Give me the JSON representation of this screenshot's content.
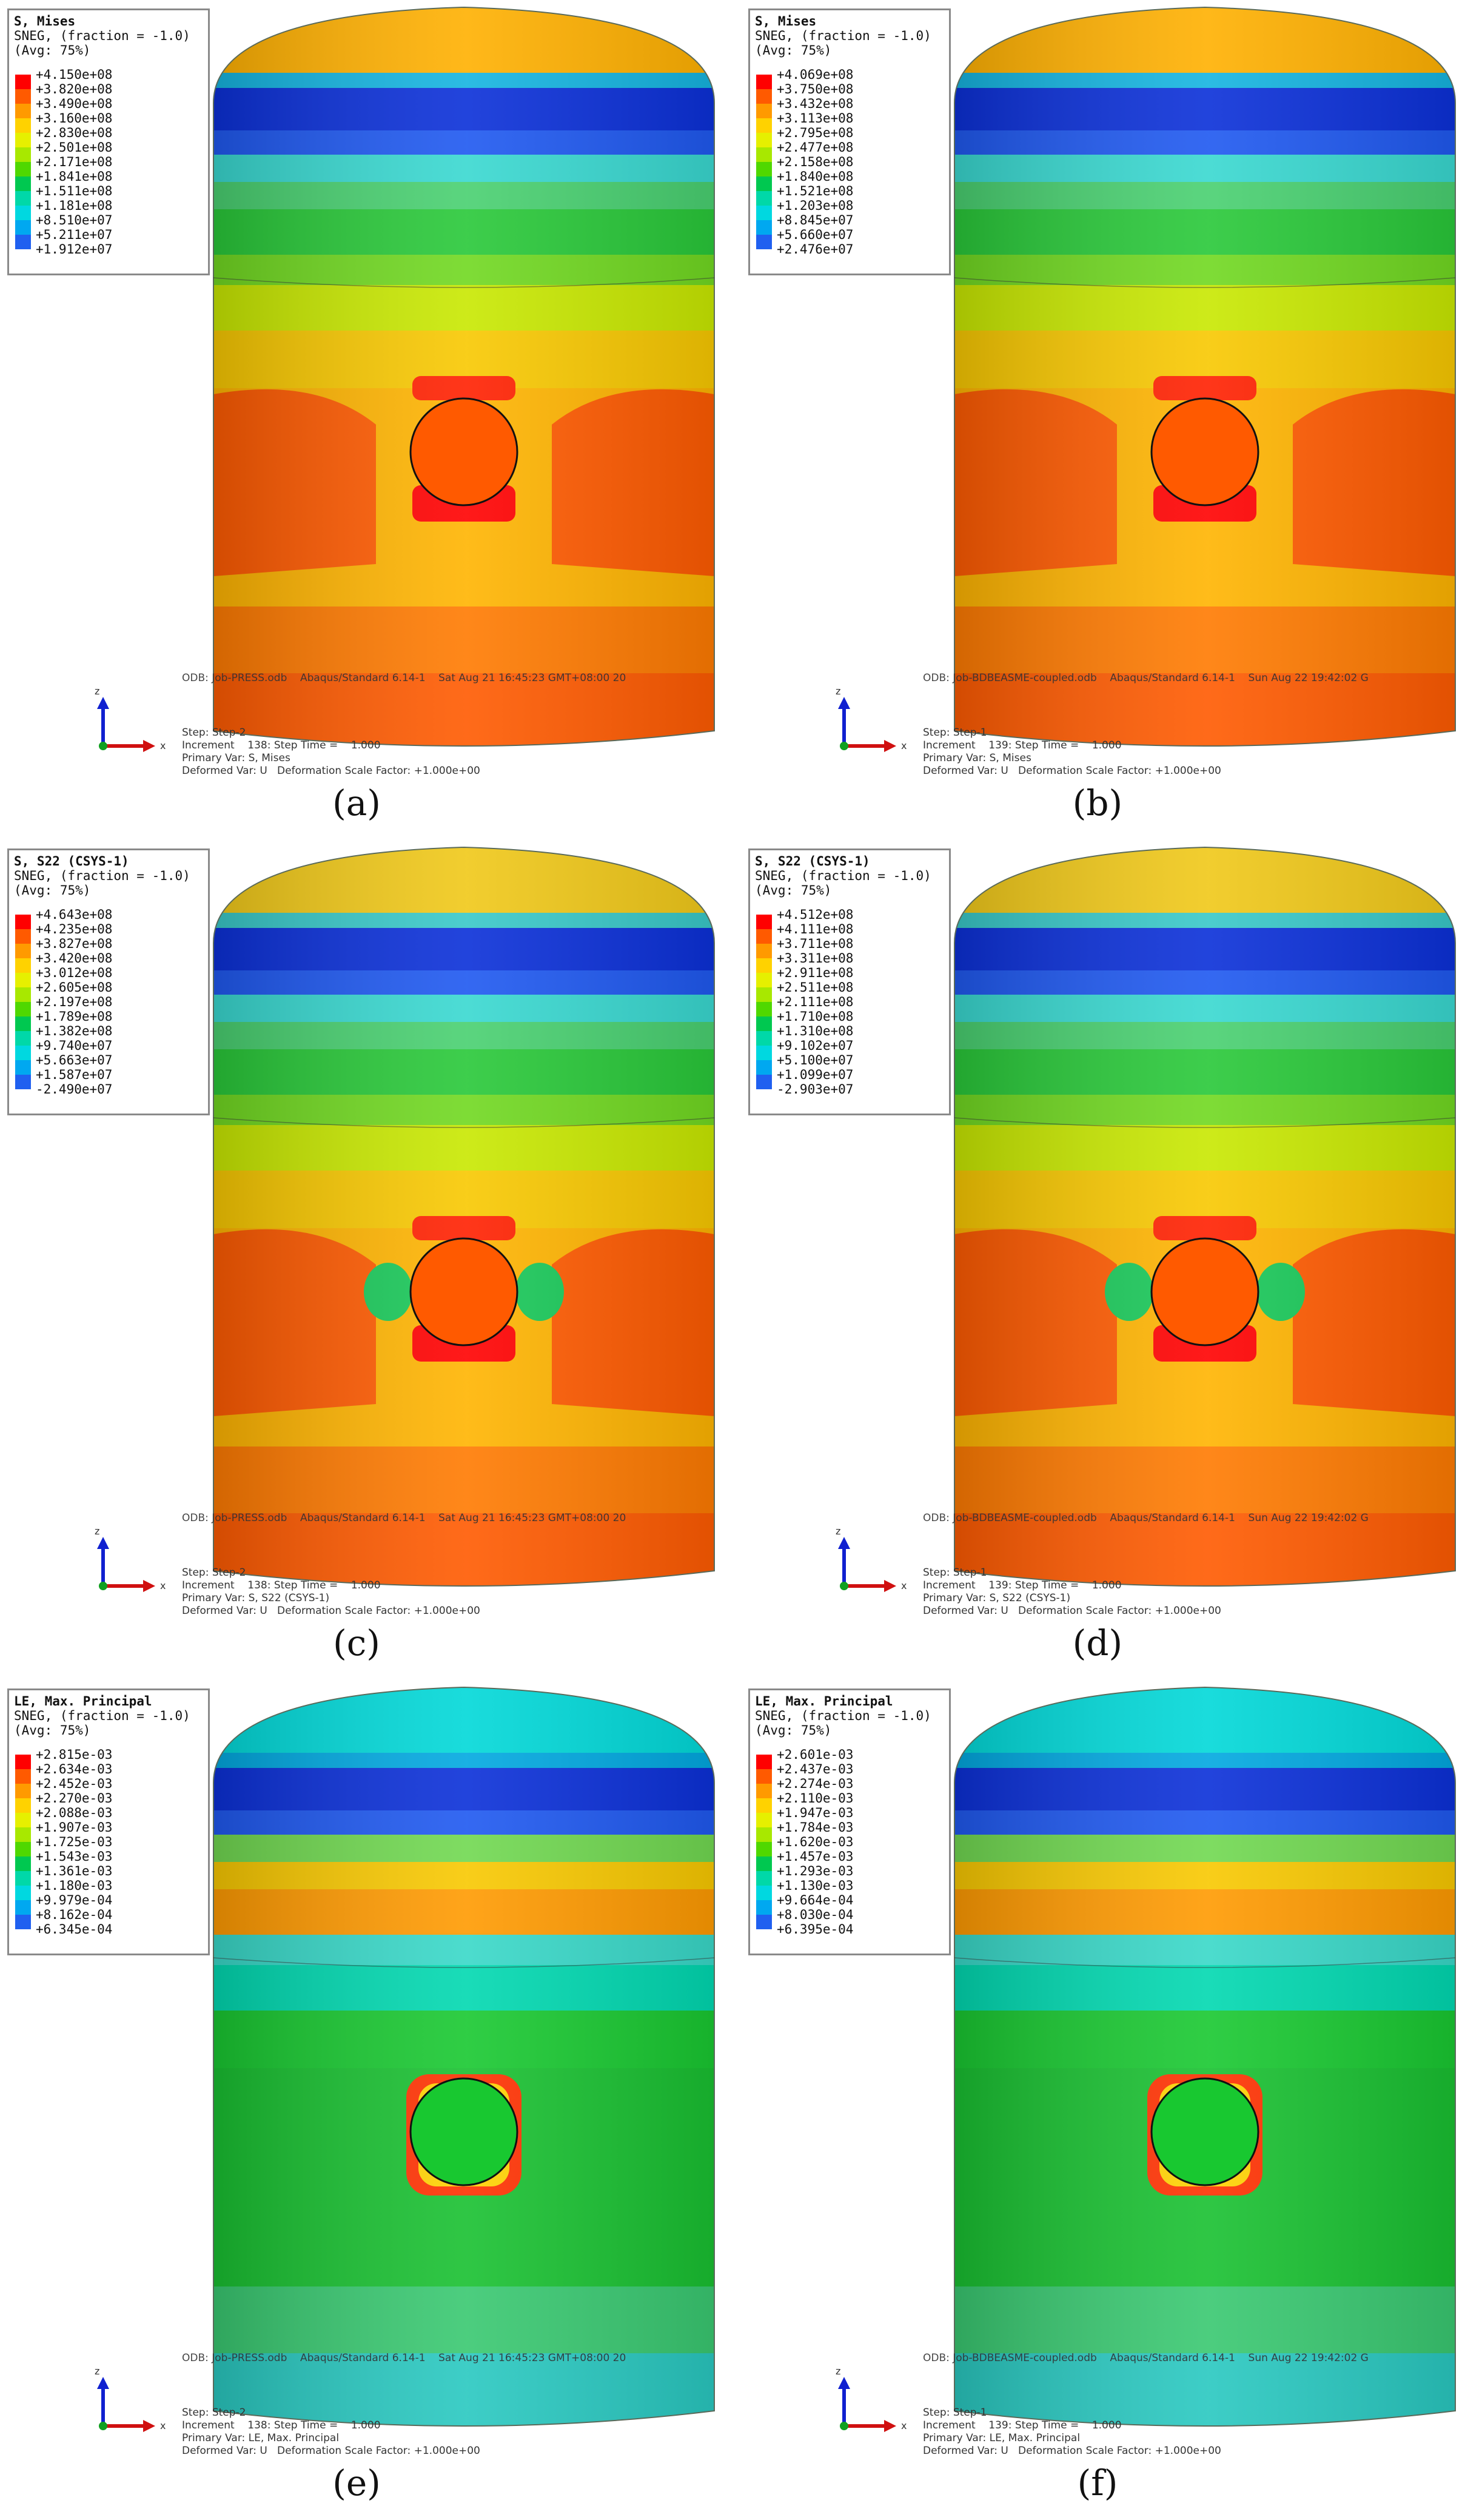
{
  "panels": [
    {
      "label": "(a)",
      "legend": {
        "title": "S, Mises",
        "line2": "SNEG, (fraction = -1.0)",
        "line3": "(Avg: 75%)",
        "values": [
          "+4.150e+08",
          "+3.820e+08",
          "+3.490e+08",
          "+3.160e+08",
          "+2.830e+08",
          "+2.501e+08",
          "+2.171e+08",
          "+1.841e+08",
          "+1.511e+08",
          "+1.181e+08",
          "+8.510e+07",
          "+5.211e+07",
          "+1.912e+07"
        ]
      },
      "odb": "ODB: Job-PRESS.odb    Abaqus/Standard 6.14-1    Sat Aug 21 16:45:23 GMT+08:00 20",
      "step": [
        "Step: Step-2",
        "Increment    138: Step Time =    1.000",
        "Primary Var: S, Mises",
        "Deformed Var: U   Deformation Scale Factor: +1.000e+00"
      ],
      "axes": {
        "z": "z",
        "x": "x"
      }
    },
    {
      "label": "(b)",
      "legend": {
        "title": "S, Mises",
        "line2": "SNEG, (fraction = -1.0)",
        "line3": "(Avg: 75%)",
        "values": [
          "+4.069e+08",
          "+3.750e+08",
          "+3.432e+08",
          "+3.113e+08",
          "+2.795e+08",
          "+2.477e+08",
          "+2.158e+08",
          "+1.840e+08",
          "+1.521e+08",
          "+1.203e+08",
          "+8.845e+07",
          "+5.660e+07",
          "+2.476e+07"
        ]
      },
      "odb": "ODB: Job-BDBEASME-coupled.odb    Abaqus/Standard 6.14-1    Sun Aug 22 19:42:02 G",
      "step": [
        "Step: Step-1",
        "Increment    139: Step Time =    1.000",
        "Primary Var: S, Mises",
        "Deformed Var: U   Deformation Scale Factor: +1.000e+00"
      ],
      "axes": {
        "z": "z",
        "x": "x"
      }
    },
    {
      "label": "(c)",
      "legend": {
        "title": "S, S22 (CSYS-1)",
        "line2": "SNEG, (fraction = -1.0)",
        "line3": "(Avg: 75%)",
        "values": [
          "+4.643e+08",
          "+4.235e+08",
          "+3.827e+08",
          "+3.420e+08",
          "+3.012e+08",
          "+2.605e+08",
          "+2.197e+08",
          "+1.789e+08",
          "+1.382e+08",
          "+9.740e+07",
          "+5.663e+07",
          "+1.587e+07",
          "-2.490e+07"
        ]
      },
      "odb": "ODB: Job-PRESS.odb    Abaqus/Standard 6.14-1    Sat Aug 21 16:45:23 GMT+08:00 20",
      "step": [
        "Step: Step-2",
        "Increment    138: Step Time =    1.000",
        "Primary Var: S, S22 (CSYS-1)",
        "Deformed Var: U   Deformation Scale Factor: +1.000e+00"
      ],
      "axes": {
        "z": "z",
        "x": "x"
      }
    },
    {
      "label": "(d)",
      "legend": {
        "title": "S, S22 (CSYS-1)",
        "line2": "SNEG, (fraction = -1.0)",
        "line3": "(Avg: 75%)",
        "values": [
          "+4.512e+08",
          "+4.111e+08",
          "+3.711e+08",
          "+3.311e+08",
          "+2.911e+08",
          "+2.511e+08",
          "+2.111e+08",
          "+1.710e+08",
          "+1.310e+08",
          "+9.102e+07",
          "+5.100e+07",
          "+1.099e+07",
          "-2.903e+07"
        ]
      },
      "odb": "ODB: Job-BDBEASME-coupled.odb    Abaqus/Standard 6.14-1    Sun Aug 22 19:42:02 G",
      "step": [
        "Step: Step-1",
        "Increment    139: Step Time =    1.000",
        "Primary Var: S, S22 (CSYS-1)",
        "Deformed Var: U   Deformation Scale Factor: +1.000e+00"
      ],
      "axes": {
        "z": "z",
        "x": "x"
      }
    },
    {
      "label": "(e)",
      "legend": {
        "title": "LE, Max. Principal",
        "line2": "SNEG, (fraction = -1.0)",
        "line3": "(Avg: 75%)",
        "values": [
          "+2.815e-03",
          "+2.634e-03",
          "+2.452e-03",
          "+2.270e-03",
          "+2.088e-03",
          "+1.907e-03",
          "+1.725e-03",
          "+1.543e-03",
          "+1.361e-03",
          "+1.180e-03",
          "+9.979e-04",
          "+8.162e-04",
          "+6.345e-04"
        ]
      },
      "odb": "ODB: Job-PRESS.odb    Abaqus/Standard 6.14-1    Sat Aug 21 16:45:23 GMT+08:00 20",
      "step": [
        "Step: Step-2",
        "Increment    138: Step Time =    1.000",
        "Primary Var: LE, Max. Principal",
        "Deformed Var: U   Deformation Scale Factor: +1.000e+00"
      ],
      "axes": {
        "z": "z",
        "x": "x"
      }
    },
    {
      "label": "(f)",
      "legend": {
        "title": "LE, Max. Principal",
        "line2": "SNEG, (fraction = -1.0)",
        "line3": "(Avg: 75%)",
        "values": [
          "+2.601e-03",
          "+2.437e-03",
          "+2.274e-03",
          "+2.110e-03",
          "+1.947e-03",
          "+1.784e-03",
          "+1.620e-03",
          "+1.457e-03",
          "+1.293e-03",
          "+1.130e-03",
          "+9.664e-04",
          "+8.030e-04",
          "+6.395e-04"
        ]
      },
      "odb": "ODB: Job-BDBEASME-coupled.odb    Abaqus/Standard 6.14-1    Sun Aug 22 19:42:02 G",
      "step": [
        "Step: Step-1",
        "Increment    139: Step Time =    1.000",
        "Primary Var: LE, Max. Principal",
        "Deformed Var: U   Deformation Scale Factor: +1.000e+00"
      ],
      "axes": {
        "z": "z",
        "x": "x"
      }
    }
  ],
  "contour_colors": [
    "#ff0000",
    "#ff5a00",
    "#ff9a00",
    "#ffd200",
    "#e6f000",
    "#a8e800",
    "#4fd800",
    "#00c850",
    "#00d8a8",
    "#00d8e0",
    "#00a8f0",
    "#2060f0",
    "#0000ff"
  ],
  "fields": {
    "mises": [
      "#ffb000",
      "#14b4e0",
      "#0a2fd8",
      "#1e58f0",
      "#38d8d0",
      "#48d070",
      "#28c838",
      "#70d820",
      "#c8e800",
      "#f8c800",
      "#ffb400",
      "#ff7a00",
      "#ff5a00"
    ],
    "s22": [
      "#f0c818",
      "#38c8c8",
      "#0a2fd8",
      "#1e58f0",
      "#38d8d0",
      "#48d070",
      "#28c838",
      "#70d820",
      "#c8e800",
      "#f8c800",
      "#ffb400",
      "#ff7a00",
      "#ff5a00"
    ],
    "le": [
      "#00d8d8",
      "#00a8e0",
      "#0a2fd8",
      "#1e58f0",
      "#70d850",
      "#f8c800",
      "#ff9a00",
      "#38d8c8",
      "#00d8b0",
      "#18c830",
      "#18c030",
      "#38c870",
      "#28c8c0"
    ]
  }
}
